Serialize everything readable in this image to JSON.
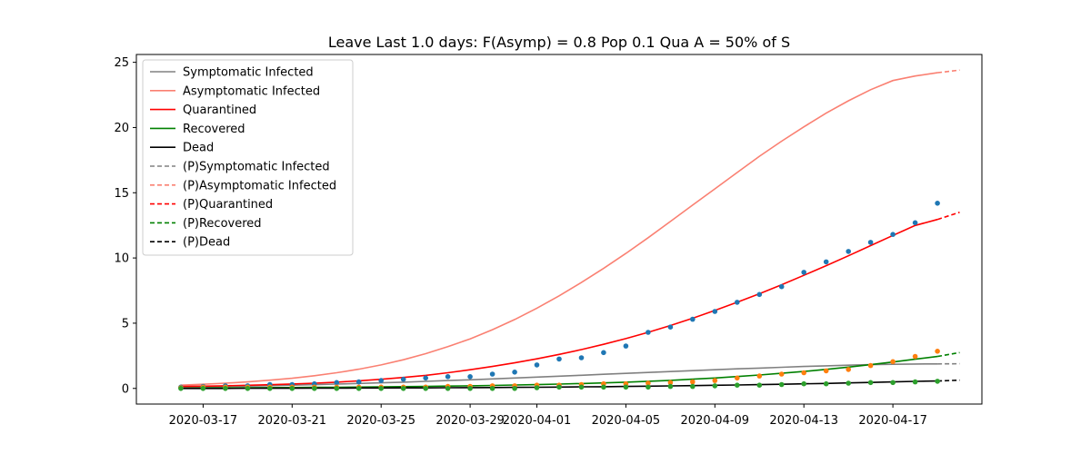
{
  "chart_data": {
    "type": "line",
    "title": "Leave Last 1.0 days: F(Asymp) = 0.8 Pop 0.1 Qua A = 50% of S",
    "xlabel": "",
    "ylabel": "",
    "x_start": "2020-03-16",
    "x_end": "2020-04-19",
    "xlim": [
      "2020-03-14",
      "2020-04-21"
    ],
    "ylim": [
      -1.2,
      25.6
    ],
    "grid": false,
    "legend_position": "top-left",
    "x_ticks": [
      "2020-03-17",
      "2020-03-21",
      "2020-03-25",
      "2020-03-29",
      "2020-04-01",
      "2020-04-05",
      "2020-04-09",
      "2020-04-13",
      "2020-04-17"
    ],
    "y_ticks": [
      0,
      5,
      10,
      15,
      20,
      25
    ],
    "legend": [
      {
        "label": "Symptomatic Infected",
        "color": "#808080",
        "style": "solid"
      },
      {
        "label": "Asymptomatic Infected",
        "color": "#fa8072",
        "style": "solid"
      },
      {
        "label": "Quarantined",
        "color": "#ff0000",
        "style": "solid"
      },
      {
        "label": "Recovered",
        "color": "#008000",
        "style": "solid"
      },
      {
        "label": "Dead",
        "color": "#000000",
        "style": "solid"
      },
      {
        "label": "(P)Symptomatic Infected",
        "color": "#808080",
        "style": "dashed"
      },
      {
        "label": "(P)Asymptomatic Infected",
        "color": "#fa8072",
        "style": "dashed"
      },
      {
        "label": "(P)Quarantined",
        "color": "#ff0000",
        "style": "dashed"
      },
      {
        "label": "(P)Recovered",
        "color": "#008000",
        "style": "dashed"
      },
      {
        "label": "(P)Dead",
        "color": "#000000",
        "style": "dashed"
      }
    ],
    "series": [
      {
        "name": "Symptomatic Infected",
        "color": "#808080",
        "values": [
          0.1,
          0.12,
          0.15,
          0.18,
          0.21,
          0.25,
          0.29,
          0.33,
          0.38,
          0.43,
          0.48,
          0.54,
          0.6,
          0.66,
          0.73,
          0.8,
          0.87,
          0.94,
          1.01,
          1.08,
          1.15,
          1.22,
          1.29,
          1.36,
          1.43,
          1.5,
          1.56,
          1.62,
          1.68,
          1.73,
          1.78,
          1.82,
          1.85,
          1.87,
          1.88
        ],
        "projection": [
          1.88,
          1.89
        ]
      },
      {
        "name": "Asymptomatic Infected",
        "color": "#fa8072",
        "values": [
          0.25,
          0.32,
          0.4,
          0.5,
          0.63,
          0.78,
          0.97,
          1.2,
          1.47,
          1.8,
          2.2,
          2.66,
          3.2,
          3.8,
          4.5,
          5.28,
          6.15,
          7.1,
          8.12,
          9.2,
          10.35,
          11.55,
          12.8,
          14.05,
          15.3,
          16.55,
          17.8,
          18.95,
          20.05,
          21.1,
          22.05,
          22.9,
          23.6,
          23.95,
          24.2
        ],
        "projection": [
          24.2,
          24.4
        ]
      },
      {
        "name": "Quarantined",
        "color": "#ff0000",
        "values": [
          0.15,
          0.17,
          0.2,
          0.24,
          0.28,
          0.34,
          0.4,
          0.48,
          0.58,
          0.7,
          0.84,
          1.0,
          1.2,
          1.43,
          1.68,
          1.96,
          2.27,
          2.61,
          2.98,
          3.38,
          3.82,
          4.3,
          4.82,
          5.38,
          5.98,
          6.6,
          7.26,
          7.95,
          8.67,
          9.41,
          10.17,
          10.95,
          11.73,
          12.49,
          12.95
        ],
        "projection": [
          12.95,
          13.5
        ]
      },
      {
        "name": "Recovered",
        "color": "#008000",
        "values": [
          0.02,
          0.03,
          0.04,
          0.05,
          0.06,
          0.07,
          0.08,
          0.09,
          0.1,
          0.12,
          0.14,
          0.16,
          0.18,
          0.2,
          0.23,
          0.26,
          0.29,
          0.33,
          0.37,
          0.42,
          0.48,
          0.55,
          0.62,
          0.71,
          0.8,
          0.91,
          1.03,
          1.16,
          1.3,
          1.46,
          1.63,
          1.82,
          2.02,
          2.24,
          2.45
        ],
        "projection": [
          2.45,
          2.75
        ]
      },
      {
        "name": "Dead",
        "color": "#000000",
        "values": [
          0.0,
          0.0,
          0.0,
          0.01,
          0.01,
          0.01,
          0.02,
          0.02,
          0.03,
          0.03,
          0.04,
          0.04,
          0.05,
          0.06,
          0.07,
          0.08,
          0.09,
          0.1,
          0.12,
          0.13,
          0.15,
          0.17,
          0.19,
          0.21,
          0.24,
          0.26,
          0.29,
          0.32,
          0.35,
          0.38,
          0.42,
          0.46,
          0.5,
          0.54,
          0.57
        ],
        "projection": [
          0.57,
          0.63
        ]
      }
    ],
    "scatter": [
      {
        "color": "#1f77b4",
        "values": [
          0.1,
          0.15,
          0.2,
          0.2,
          0.3,
          0.3,
          0.35,
          0.45,
          0.5,
          0.6,
          0.7,
          0.8,
          0.9,
          0.9,
          1.1,
          1.25,
          1.8,
          2.25,
          2.35,
          2.75,
          3.25,
          4.3,
          4.7,
          5.3,
          5.9,
          6.6,
          7.2,
          7.8,
          8.9,
          9.7,
          10.5,
          11.2,
          11.8,
          12.7,
          14.2
        ]
      },
      {
        "color": "#ff7f0e",
        "values": [
          0.05,
          0.1,
          0.1,
          0.1,
          0.1,
          0.1,
          0.1,
          0.1,
          0.1,
          0.1,
          0.1,
          0.1,
          0.15,
          0.15,
          0.2,
          0.2,
          0.25,
          0.25,
          0.3,
          0.35,
          0.35,
          0.4,
          0.45,
          0.5,
          0.6,
          0.8,
          0.95,
          1.1,
          1.2,
          1.35,
          1.45,
          1.75,
          2.05,
          2.45,
          2.85
        ]
      },
      {
        "color": "#2ca02c",
        "values": [
          0.0,
          0.0,
          0.0,
          0.0,
          0.0,
          0.0,
          0.0,
          0.0,
          0.0,
          0.0,
          0.0,
          0.0,
          0.0,
          0.0,
          0.0,
          0.0,
          0.05,
          0.1,
          0.1,
          0.1,
          0.1,
          0.1,
          0.15,
          0.15,
          0.2,
          0.25,
          0.25,
          0.3,
          0.35,
          0.35,
          0.4,
          0.45,
          0.45,
          0.5,
          0.55
        ]
      }
    ]
  }
}
